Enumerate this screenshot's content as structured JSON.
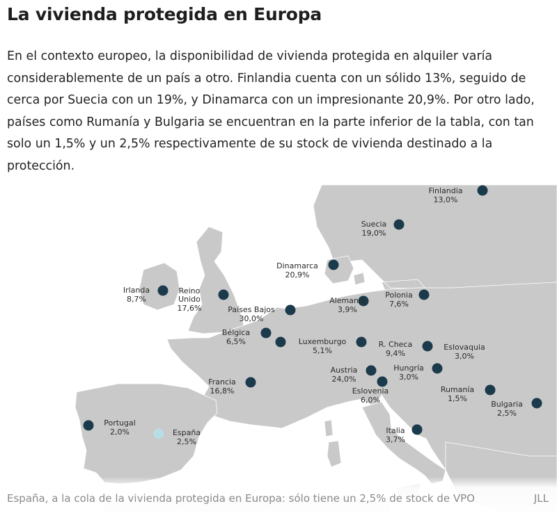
{
  "article": {
    "headline": "La vivienda protegida en Europa",
    "lead": "En el contexto europeo, la disponibilidad de vivienda protegida en alquiler varía considerablemente de un país a otro. Finlandia cuenta con un sólido 13%, seguido de cerca por Suecia con un 19%, y Dinamarca con un impresionante 20,9%. Por otro lado, países como Rumanía y Bulgaria se encuentran en la parte inferior de la tabla, con tan solo un 1,5% y un 2,5% respectivamente de su stock de vivienda destinado a la protección."
  },
  "map": {
    "colors": {
      "sea": "#ffffff",
      "land": "#c9c9c9",
      "marker": "#1b3a4b",
      "highlight": "#b9dde6"
    },
    "countries": [
      {
        "id": "finlandia",
        "name": "Finlandia",
        "value": "13,0%"
      },
      {
        "id": "suecia",
        "name": "Suecia",
        "value": "19,0%"
      },
      {
        "id": "dinamarca",
        "name": "Dinamarca",
        "value": "20,9%"
      },
      {
        "id": "irlanda",
        "name": "Irlanda",
        "value": "8,7%"
      },
      {
        "id": "reino-unido",
        "name": "Reino Unido",
        "value": "17,6%"
      },
      {
        "id": "paises-bajos",
        "name": "Países Bajos",
        "value": "30,0%"
      },
      {
        "id": "alemania",
        "name": "Alemania",
        "value": "3,9%"
      },
      {
        "id": "polonia",
        "name": "Polonia",
        "value": "7,6%"
      },
      {
        "id": "belgica",
        "name": "Bélgica",
        "value": "6,5%"
      },
      {
        "id": "luxemburgo",
        "name": "Luxemburgo",
        "value": "5,1%"
      },
      {
        "id": "r-checa",
        "name": "R. Checa",
        "value": "9,4%"
      },
      {
        "id": "eslovaquia",
        "name": "Eslovaquia",
        "value": "3,0%"
      },
      {
        "id": "francia",
        "name": "Francia",
        "value": "16,8%"
      },
      {
        "id": "austria",
        "name": "Austria",
        "value": "24,0%"
      },
      {
        "id": "hungria",
        "name": "Hungría",
        "value": "3,0%"
      },
      {
        "id": "eslovenia",
        "name": "Eslovenia",
        "value": "6,0%"
      },
      {
        "id": "rumania",
        "name": "Rumanía",
        "value": "1,5%"
      },
      {
        "id": "bulgaria",
        "name": "Bulgaria",
        "value": "2,5%"
      },
      {
        "id": "portugal",
        "name": "Portugal",
        "value": "2,0%"
      },
      {
        "id": "espana",
        "name": "España",
        "value": "2,5%",
        "highlighted": true
      },
      {
        "id": "italia",
        "name": "Italia",
        "value": "3,7%"
      }
    ]
  },
  "caption": {
    "text": "España, a la cola de la vivienda protegida en Europa: sólo tiene un 2,5% de stock de VPO",
    "credit": "JLL"
  }
}
